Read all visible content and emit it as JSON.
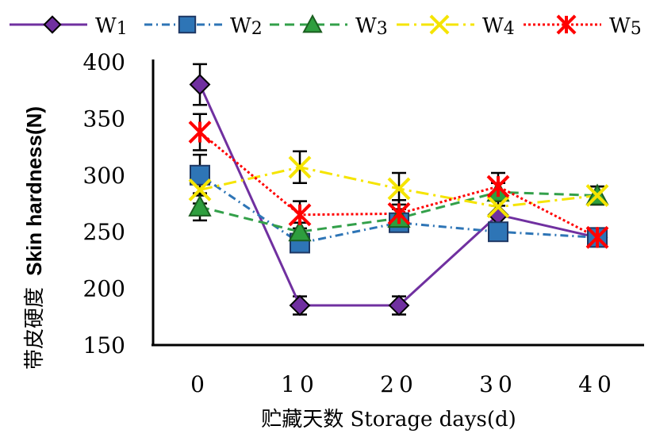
{
  "chart_data": {
    "type": "line",
    "xlabel": "贮藏天数 Storage days(d)",
    "ylabel_zh": "带皮硬度",
    "ylabel_en": "Skin hardness(N)",
    "x": [
      0,
      10,
      20,
      30,
      40
    ],
    "xticks": [
      "0",
      "10",
      "20",
      "30",
      "40"
    ],
    "ylim": [
      150,
      400
    ],
    "yticks": [
      "150",
      "200",
      "250",
      "300",
      "350",
      "400"
    ],
    "grid": false,
    "legend_position": "top",
    "series": [
      {
        "name": "W",
        "sub": "1",
        "color": "#7030a0",
        "marker": "diamond",
        "marker_fill": "#7030a0",
        "dash": "",
        "values": [
          380,
          185,
          185,
          265,
          245
        ],
        "errors": [
          18,
          8,
          8,
          8,
          8
        ]
      },
      {
        "name": "W",
        "sub": "2",
        "color": "#2e75b6",
        "marker": "square",
        "marker_fill": "#2e75b6",
        "dash": "10,5,2,5",
        "values": [
          300,
          240,
          258,
          250,
          245
        ],
        "errors": [
          18,
          8,
          8,
          8,
          8
        ]
      },
      {
        "name": "W",
        "sub": "3",
        "color": "#33a04a",
        "marker": "triangle",
        "marker_fill": "#2e9e3e",
        "dash": "12,7",
        "values": [
          272,
          250,
          262,
          285,
          282
        ],
        "errors": [
          12,
          8,
          8,
          8,
          8
        ]
      },
      {
        "name": "W",
        "sub": "4",
        "color": "#f5e400",
        "marker": "x",
        "marker_fill": "#f5e400",
        "dash": "16,6,3,6",
        "values": [
          287,
          307,
          288,
          272,
          282
        ],
        "errors": [
          12,
          14,
          14,
          8,
          8
        ]
      },
      {
        "name": "W",
        "sub": "5",
        "color": "#ff0000",
        "marker": "star",
        "marker_fill": "#ff0000",
        "dash": "3,3",
        "values": [
          338,
          265,
          266,
          290,
          245
        ],
        "errors": [
          16,
          12,
          12,
          12,
          8
        ]
      }
    ]
  }
}
